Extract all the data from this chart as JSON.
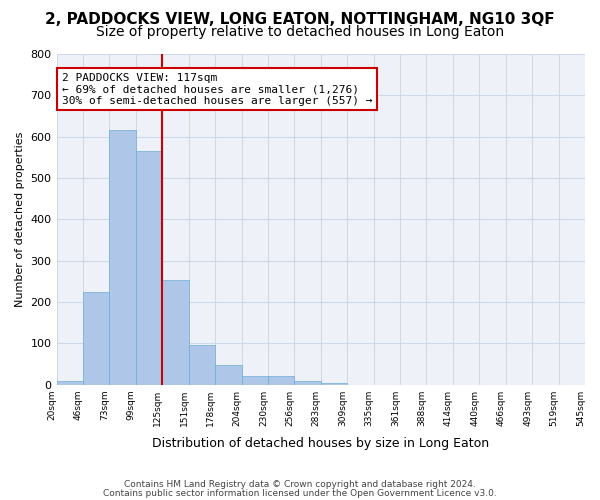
{
  "title": "2, PADDOCKS VIEW, LONG EATON, NOTTINGHAM, NG10 3QF",
  "subtitle": "Size of property relative to detached houses in Long Eaton",
  "xlabel": "Distribution of detached houses by size in Long Eaton",
  "ylabel": "Number of detached properties",
  "bar_heights": [
    10,
    225,
    615,
    565,
    252,
    95,
    48,
    22,
    22,
    8,
    5,
    0,
    0,
    0,
    0,
    0,
    0,
    0,
    0,
    0
  ],
  "bar_labels": [
    "20sqm",
    "46sqm",
    "73sqm",
    "99sqm",
    "125sqm",
    "151sqm",
    "178sqm",
    "204sqm",
    "230sqm",
    "256sqm",
    "283sqm",
    "309sqm",
    "335sqm",
    "361sqm",
    "388sqm",
    "414sqm",
    "440sqm",
    "466sqm",
    "493sqm",
    "519sqm",
    "545sqm"
  ],
  "bar_color": "#aec6e8",
  "bar_edge_color": "#6baed6",
  "property_line_x": 4.0,
  "property_line_color": "#cc0000",
  "annotation_text": "2 PADDOCKS VIEW: 117sqm\n← 69% of detached houses are smaller (1,276)\n30% of semi-detached houses are larger (557) →",
  "annotation_box_color": "#ffffff",
  "annotation_box_edge": "#cc0000",
  "ylim": [
    0,
    800
  ],
  "yticks": [
    0,
    100,
    200,
    300,
    400,
    500,
    600,
    700,
    800
  ],
  "grid_color": "#d0d8e8",
  "background_color": "#eef2f8",
  "footer_line1": "Contains HM Land Registry data © Crown copyright and database right 2024.",
  "footer_line2": "Contains public sector information licensed under the Open Government Licence v3.0.",
  "title_fontsize": 11,
  "subtitle_fontsize": 10
}
